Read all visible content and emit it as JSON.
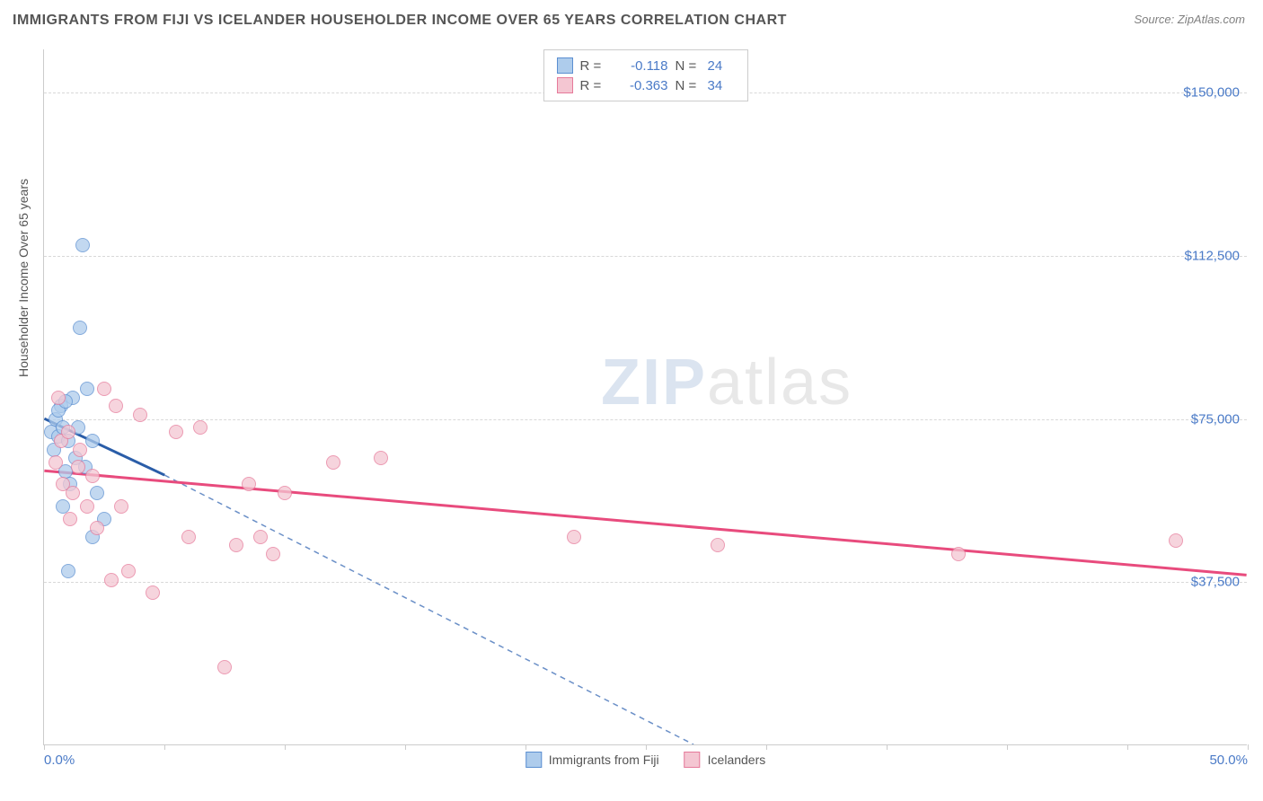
{
  "title": "IMMIGRANTS FROM FIJI VS ICELANDER HOUSEHOLDER INCOME OVER 65 YEARS CORRELATION CHART",
  "source": "Source: ZipAtlas.com",
  "watermark_zip": "ZIP",
  "watermark_atlas": "atlas",
  "y_axis_label": "Householder Income Over 65 years",
  "chart": {
    "type": "scatter-correlation",
    "background_color": "#ffffff",
    "grid_color": "#d8d8d8",
    "axis_color": "#cccccc",
    "tick_label_color": "#4a7ac7",
    "axis_label_color": "#555555",
    "xlim": [
      0,
      50
    ],
    "ylim": [
      0,
      160000
    ],
    "x_tick_positions": [
      0,
      5,
      10,
      15,
      20,
      25,
      30,
      35,
      40,
      45,
      50
    ],
    "x_tick_labels": {
      "0": "0.0%",
      "50": "50.0%"
    },
    "y_gridlines": [
      37500,
      75000,
      112500,
      150000
    ],
    "y_tick_labels": [
      "$37,500",
      "$75,000",
      "$112,500",
      "$150,000"
    ],
    "marker_radius": 8,
    "title_fontsize": 16,
    "label_fontsize": 14
  },
  "series": [
    {
      "name": "Immigrants from Fiji",
      "fill": "#aeccec",
      "stroke": "#5b8fd1",
      "trend_color": "#2a5da8",
      "trend_dash_color": "#6a8fc7",
      "R_label": "R =",
      "R": "-0.118",
      "N_label": "N =",
      "N": "24",
      "trend": {
        "x1": 0,
        "y1": 75000,
        "x2": 5,
        "y2": 62000,
        "extend_to_x": 27,
        "extend_to_y": 0
      },
      "points": [
        [
          0.3,
          72000
        ],
        [
          0.4,
          68000
        ],
        [
          0.5,
          75000
        ],
        [
          0.6,
          71000
        ],
        [
          0.7,
          78000
        ],
        [
          0.8,
          73000
        ],
        [
          0.9,
          63000
        ],
        [
          1.0,
          70000
        ],
        [
          1.1,
          60000
        ],
        [
          1.2,
          80000
        ],
        [
          1.3,
          66000
        ],
        [
          1.5,
          96000
        ],
        [
          1.6,
          115000
        ],
        [
          1.8,
          82000
        ],
        [
          2.0,
          70000
        ],
        [
          2.2,
          58000
        ],
        [
          2.5,
          52000
        ],
        [
          1.0,
          40000
        ],
        [
          0.8,
          55000
        ],
        [
          1.4,
          73000
        ],
        [
          0.6,
          77000
        ],
        [
          2.0,
          48000
        ],
        [
          1.7,
          64000
        ],
        [
          0.9,
          79000
        ]
      ]
    },
    {
      "name": "Icelanders",
      "fill": "#f4c6d2",
      "stroke": "#e67a9a",
      "trend_color": "#e84b7d",
      "R_label": "R =",
      "R": "-0.363",
      "N_label": "N =",
      "N": "34",
      "trend": {
        "x1": 0,
        "y1": 63000,
        "x2": 50,
        "y2": 39000
      },
      "points": [
        [
          0.5,
          65000
        ],
        [
          0.7,
          70000
        ],
        [
          0.8,
          60000
        ],
        [
          1.0,
          72000
        ],
        [
          1.2,
          58000
        ],
        [
          1.5,
          68000
        ],
        [
          1.8,
          55000
        ],
        [
          2.0,
          62000
        ],
        [
          2.2,
          50000
        ],
        [
          2.5,
          82000
        ],
        [
          3.0,
          78000
        ],
        [
          3.5,
          40000
        ],
        [
          4.0,
          76000
        ],
        [
          4.5,
          35000
        ],
        [
          5.5,
          72000
        ],
        [
          6.0,
          48000
        ],
        [
          6.5,
          73000
        ],
        [
          7.5,
          18000
        ],
        [
          8.0,
          46000
        ],
        [
          8.5,
          60000
        ],
        [
          9.0,
          48000
        ],
        [
          9.5,
          44000
        ],
        [
          10.0,
          58000
        ],
        [
          12.0,
          65000
        ],
        [
          14.0,
          66000
        ],
        [
          22.0,
          48000
        ],
        [
          28.0,
          46000
        ],
        [
          38.0,
          44000
        ],
        [
          47.0,
          47000
        ],
        [
          0.6,
          80000
        ],
        [
          1.1,
          52000
        ],
        [
          2.8,
          38000
        ],
        [
          3.2,
          55000
        ],
        [
          1.4,
          64000
        ]
      ]
    }
  ],
  "legend_bottom": [
    {
      "label": "Immigrants from Fiji",
      "fill": "#aeccec",
      "stroke": "#5b8fd1"
    },
    {
      "label": "Icelanders",
      "fill": "#f4c6d2",
      "stroke": "#e67a9a"
    }
  ]
}
